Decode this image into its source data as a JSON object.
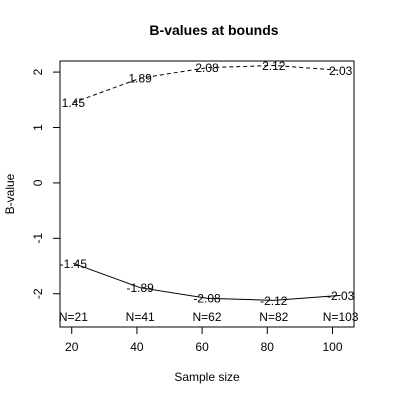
{
  "chart_data": {
    "type": "line",
    "title": "B-values at bounds",
    "xlabel": "Sample size",
    "ylabel": "B-value",
    "x": [
      20.5,
      41,
      61.5,
      82,
      102.5
    ],
    "xlim": [
      16.4,
      106.6
    ],
    "ylim": [
      -2.6,
      2.2
    ],
    "xticks": [
      "20",
      "40",
      "60",
      "80",
      "100"
    ],
    "xtick_values": [
      20,
      40,
      60,
      80,
      100
    ],
    "yticks": [
      "-2",
      "-1",
      "0",
      "1",
      "2"
    ],
    "ytick_values": [
      -2,
      -1,
      0,
      1,
      2
    ],
    "grid": false,
    "series": [
      {
        "values": [
          1.45,
          1.89,
          2.08,
          2.12,
          2.03
        ],
        "labels": [
          "1.45",
          "1.89",
          "2.08",
          "2.12",
          "2.03"
        ],
        "line_style": "dashed"
      },
      {
        "values": [
          -1.45,
          -1.89,
          -2.08,
          -2.12,
          -2.03
        ],
        "labels": [
          "-1.45",
          "-1.89",
          "-2.08",
          "-2.12",
          "-2.03"
        ],
        "line_style": "solid"
      }
    ],
    "annotations": [
      "N=21",
      "N=41",
      "N=62",
      "N=82",
      "N=103"
    ],
    "colors": {
      "line": "#000000",
      "text": "#000000",
      "background": "#ffffff"
    }
  }
}
